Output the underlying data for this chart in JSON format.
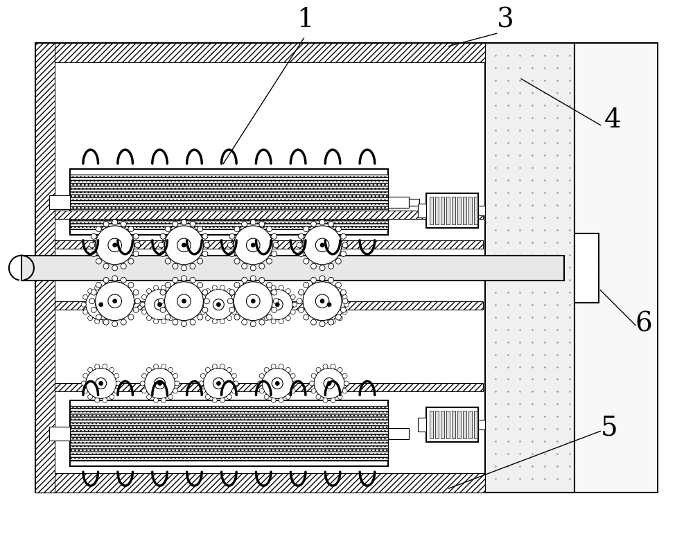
{
  "bg_color": "#ffffff",
  "line_color": "#000000",
  "hatch_color": "#000000",
  "light_gray": "#d8d8d8",
  "dot_fill": "#e8e8e8",
  "label_1": "1",
  "label_2": "3",
  "label_3": "4",
  "label_4": "5",
  "label_5": "6",
  "title": "",
  "fig_width": 10.0,
  "fig_height": 7.81,
  "dpi": 100
}
